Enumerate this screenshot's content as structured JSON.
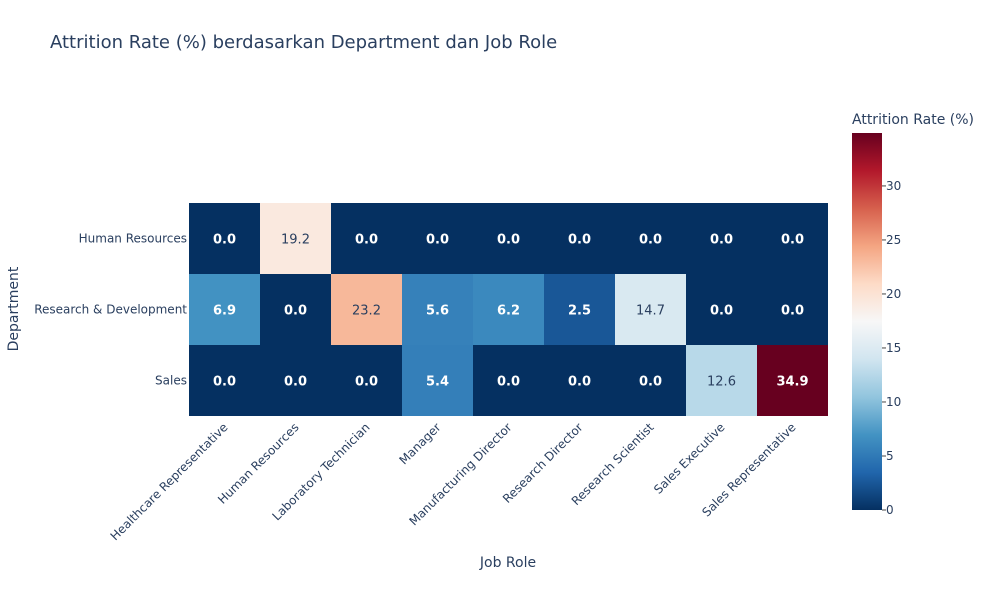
{
  "chart_data": {
    "type": "heatmap",
    "title": "Attrition Rate (%) berdasarkan Department dan Job Role",
    "xlabel": "Job Role",
    "ylabel": "Department",
    "x": [
      "Healthcare Representative",
      "Human Resources",
      "Laboratory Technician",
      "Manager",
      "Manufacturing Director",
      "Research Director",
      "Research Scientist",
      "Sales Executive",
      "Sales Representative"
    ],
    "y": [
      "Human Resources",
      "Research & Development",
      "Sales"
    ],
    "z": [
      [
        0.0,
        19.2,
        0.0,
        0.0,
        0.0,
        0.0,
        0.0,
        0.0,
        0.0
      ],
      [
        6.9,
        0.0,
        23.2,
        5.6,
        6.2,
        2.5,
        14.7,
        0.0,
        0.0
      ],
      [
        0.0,
        0.0,
        0.0,
        5.4,
        0.0,
        0.0,
        0.0,
        12.6,
        34.9
      ]
    ],
    "cell_labels": [
      [
        "0.0",
        "19.2",
        "0.0",
        "0.0",
        "0.0",
        "0.0",
        "0.0",
        "0.0",
        "0.0"
      ],
      [
        "6.9",
        "0.0",
        "23.2",
        "5.6",
        "6.2",
        "2.5",
        "14.7",
        "0.0",
        "0.0"
      ],
      [
        "0.0",
        "0.0",
        "0.0",
        "5.4",
        "0.0",
        "0.0",
        "0.0",
        "12.6",
        "34.9"
      ]
    ],
    "colorbar": {
      "title": "Attrition Rate (%)",
      "range": [
        0,
        34.9
      ],
      "ticks": [
        0,
        5,
        10,
        15,
        20,
        25,
        30
      ],
      "tick_labels": [
        "0",
        "5",
        "10",
        "15",
        "20",
        "25",
        "30"
      ]
    },
    "colorscale": "RdBu reversed",
    "colors": [
      "#053061",
      "#2166ac",
      "#4393c3",
      "#92c5de",
      "#d1e5f0",
      "#f7f7f7",
      "#fddbc7",
      "#f4a582",
      "#d6604d",
      "#b2182b",
      "#67001f"
    ]
  }
}
